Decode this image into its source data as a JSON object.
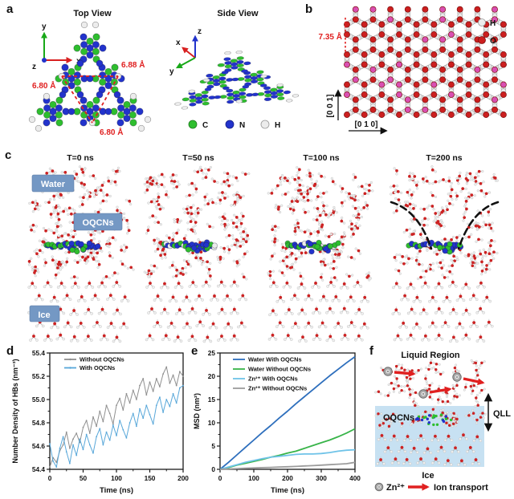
{
  "panels": {
    "a": {
      "letter": "a",
      "top_view_title": "Top View",
      "side_view_title": "Side View",
      "axis_top": {
        "x": "x",
        "y": "y",
        "z": "z"
      },
      "axis_side": {
        "x": "x",
        "y": "y",
        "z": "z"
      },
      "distances": {
        "top": "6.88 Å",
        "left": "6.80 Å",
        "bottom": "6.80 Å"
      },
      "legend": [
        {
          "label": "C",
          "color": "#2ebe2e"
        },
        {
          "label": "N",
          "color": "#2233cc"
        },
        {
          "label": "H",
          "color": "#ececec"
        }
      ]
    },
    "b": {
      "letter": "b",
      "distance": "7.35 Å",
      "axis_vertical": "[0 0 1]",
      "axis_horizontal": "[0 1 0]",
      "legend": [
        {
          "label": "H",
          "color": "#ececec"
        },
        {
          "label": "O",
          "color": "#cc1f1f"
        }
      ]
    },
    "c": {
      "letter": "c",
      "snapshots": [
        "T=0 ns",
        "T=50 ns",
        "T=100 ns",
        "T=200 ns"
      ],
      "region_labels": {
        "water": "Water",
        "oqcns": "OQCNs",
        "ice": "Ice"
      },
      "label_box_color": "#7498c4"
    },
    "d": {
      "letter": "d"
    },
    "e": {
      "letter": "e"
    },
    "f": {
      "letter": "f",
      "title": "Liquid Region",
      "oqcns": "OQCNs",
      "qll": "QLL",
      "ice": "Ice",
      "legend": {
        "zn": "Zn²⁺",
        "transport": "Ion transport"
      }
    }
  },
  "colors": {
    "annotation_red": "#e02020",
    "atom_green": "#2ebe2e",
    "atom_blue": "#2233cc",
    "atom_white": "#ececec",
    "atom_oxygen_red": "#cc1f1f",
    "atom_pink": "#d94fb2",
    "label_box_blue": "#7498c4",
    "ice_fill": "#c7e1f2",
    "zn_gray": "#a8a8a8"
  },
  "chart_data": [
    {
      "id": "d",
      "type": "line",
      "title": "",
      "xlabel": "Time (ns)",
      "ylabel": "Number Density of HBs (nm⁻³)",
      "xlim": [
        0,
        200
      ],
      "ylim": [
        54.4,
        55.4
      ],
      "xticks": [
        0,
        50,
        100,
        150,
        200
      ],
      "yticks": [
        54.4,
        54.6,
        54.8,
        55.0,
        55.2,
        55.4
      ],
      "ytick_decimals": 1,
      "grid": false,
      "legend_position": "top-left",
      "x": [
        0,
        5,
        10,
        15,
        20,
        25,
        30,
        35,
        40,
        45,
        50,
        55,
        60,
        65,
        70,
        75,
        80,
        85,
        90,
        95,
        100,
        105,
        110,
        115,
        120,
        125,
        130,
        135,
        140,
        145,
        150,
        155,
        160,
        165,
        170,
        175,
        180,
        185,
        190,
        195,
        200
      ],
      "series": [
        {
          "name": "Without OQCNs",
          "color": "#8f8f8f",
          "values": [
            54.42,
            54.5,
            54.46,
            54.56,
            54.61,
            54.72,
            54.58,
            54.66,
            54.71,
            54.63,
            54.76,
            54.82,
            54.71,
            54.85,
            54.77,
            54.9,
            54.81,
            54.95,
            54.88,
            54.79,
            54.95,
            55.01,
            54.91,
            55.05,
            54.97,
            55.08,
            55.0,
            55.12,
            55.18,
            55.04,
            55.15,
            55.07,
            55.18,
            55.11,
            55.22,
            55.28,
            55.14,
            55.21,
            55.12,
            55.24,
            55.2
          ]
        },
        {
          "name": "With OQCNs",
          "color": "#58a7d9",
          "values": [
            54.62,
            54.47,
            54.42,
            54.58,
            54.68,
            54.55,
            54.45,
            54.61,
            54.52,
            54.66,
            54.57,
            54.7,
            54.61,
            54.54,
            54.68,
            54.75,
            54.61,
            54.72,
            54.65,
            54.78,
            54.69,
            54.82,
            54.74,
            54.67,
            54.8,
            54.88,
            54.77,
            54.92,
            54.84,
            54.95,
            54.87,
            54.79,
            54.95,
            55.02,
            54.89,
            55.0,
            54.94,
            55.05,
            54.97,
            55.1,
            55.12
          ]
        }
      ]
    },
    {
      "id": "e",
      "type": "line",
      "title": "",
      "xlabel": "Time (ns)",
      "ylabel": "MSD (nm²)",
      "xlim": [
        0,
        400
      ],
      "ylim": [
        0,
        25
      ],
      "xticks": [
        0,
        100,
        200,
        300,
        400
      ],
      "yticks": [
        0,
        5,
        10,
        15,
        20,
        25
      ],
      "ytick_decimals": 0,
      "grid": false,
      "legend_position": "top-left",
      "x": [
        0,
        25,
        50,
        75,
        100,
        125,
        150,
        175,
        200,
        225,
        250,
        275,
        300,
        325,
        350,
        375,
        400
      ],
      "series": [
        {
          "name": "Water With OQCNs",
          "color": "#2e6fbd",
          "values": [
            0,
            1.5,
            3.1,
            4.7,
            6.3,
            7.9,
            9.4,
            11.0,
            12.5,
            14.1,
            15.6,
            17.1,
            18.6,
            20.1,
            21.5,
            22.9,
            24.2
          ]
        },
        {
          "name": "Water Without OQCNs",
          "color": "#38b449",
          "values": [
            0,
            0.4,
            0.9,
            1.3,
            1.7,
            2.1,
            2.6,
            3.0,
            3.5,
            3.9,
            4.5,
            5.1,
            5.7,
            6.3,
            7.0,
            7.8,
            8.7
          ]
        },
        {
          "name": "Zn²⁺ With OQCNs",
          "color": "#6fc3e8",
          "values": [
            0,
            0.5,
            1.0,
            1.5,
            1.9,
            2.3,
            2.6,
            2.8,
            3.0,
            3.2,
            3.3,
            3.3,
            3.4,
            3.6,
            3.9,
            4.1,
            4.2
          ]
        },
        {
          "name": "Zn²⁺ Without OQCNs",
          "color": "#9c9c9c",
          "values": [
            0,
            0.08,
            0.15,
            0.22,
            0.3,
            0.36,
            0.42,
            0.5,
            0.56,
            0.62,
            0.72,
            0.8,
            0.9,
            1.0,
            1.1,
            1.2,
            1.5
          ]
        }
      ]
    }
  ]
}
